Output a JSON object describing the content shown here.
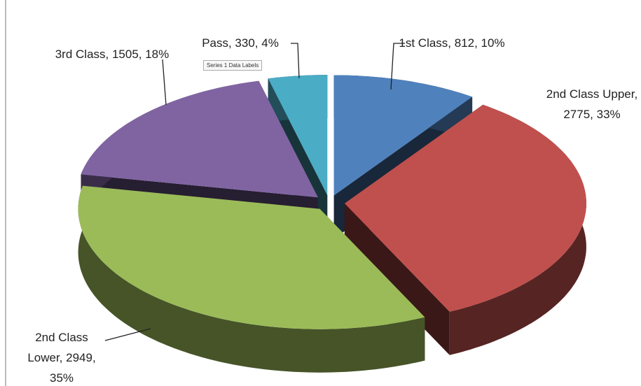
{
  "chart_data": {
    "type": "pie3d",
    "categories": [
      "1st Class",
      "2nd Class Upper",
      "2nd Class Lower",
      "3rd Class",
      "Pass"
    ],
    "values": [
      812,
      2775,
      2949,
      1505,
      330
    ],
    "value_labels": [
      "1st Class, 812, 10%",
      "2nd Class Upper, 2775, 33%",
      "2nd Class Lower, 2949, 35%",
      "3rd Class, 1505, 18%",
      "Pass, 330, 4%"
    ],
    "colors": [
      "#4f81bd",
      "#c0504d",
      "#9bbb59",
      "#8064a2",
      "#4bacc6"
    ],
    "tooltip": "Series 1 Data Labels"
  }
}
